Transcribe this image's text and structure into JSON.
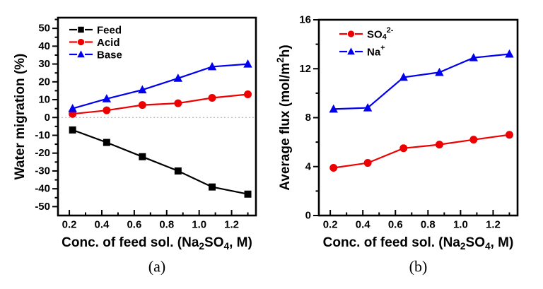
{
  "figure": {
    "background": "#ffffff",
    "frame_color": "#000000",
    "zero_line_color": "#a8a8a8"
  },
  "chart_data": [
    {
      "id": "panel-a",
      "type": "line",
      "panel_label": "(a)",
      "xlabel": "Conc. of feed sol. (Na2SO4, M)",
      "xlabel_segments": [
        {
          "t": "Conc. of feed sol. (Na"
        },
        {
          "t": "2",
          "v": "sub"
        },
        {
          "t": "SO"
        },
        {
          "t": "4",
          "v": "sub"
        },
        {
          "t": ", M)"
        }
      ],
      "ylabel": "Water migration (%)",
      "ylabel_segments": [
        {
          "t": "Water migration (%)"
        }
      ],
      "x": [
        0.22,
        0.43,
        0.65,
        0.87,
        1.08,
        1.3
      ],
      "series": [
        {
          "name": "Feed",
          "label_segments": [
            {
              "t": "Feed"
            }
          ],
          "color": "#000000",
          "marker": "square",
          "values": [
            -7,
            -14,
            -22,
            -30,
            -39,
            -43
          ]
        },
        {
          "name": "Acid",
          "label_segments": [
            {
              "t": "Acid"
            }
          ],
          "color": "#ee0000",
          "marker": "circle",
          "values": [
            2,
            4,
            7,
            8,
            11,
            13
          ]
        },
        {
          "name": "Base",
          "label_segments": [
            {
              "t": "Base"
            }
          ],
          "color": "#0000ee",
          "marker": "triangle",
          "values": [
            5,
            10.5,
            15.5,
            22,
            28.5,
            30
          ]
        }
      ],
      "xlim": [
        0.13,
        1.35
      ],
      "ylim": [
        -55,
        56
      ],
      "xticks": [
        0.2,
        0.4,
        0.6,
        0.8,
        1.0,
        1.2
      ],
      "xtick_labels": [
        "0.2",
        "0.4",
        "0.6",
        "0.8",
        "1.0",
        "1.2"
      ],
      "minor_xticks": [
        0.3,
        0.5,
        0.7,
        0.9,
        1.1,
        1.3
      ],
      "yticks": [
        -50,
        -40,
        -30,
        -20,
        -10,
        0,
        10,
        20,
        30,
        40,
        50
      ],
      "ytick_labels": [
        "-50",
        "-40",
        "-30",
        "-20",
        "-10",
        "0",
        "10",
        "20",
        "30",
        "40",
        "50"
      ],
      "minor_yticks": [
        -45,
        -35,
        -25,
        -15,
        -5,
        5,
        15,
        25,
        35,
        45,
        55
      ],
      "grid": false,
      "zero_line": true,
      "legend_position": "top-left"
    },
    {
      "id": "panel-b",
      "type": "line",
      "panel_label": "(b)",
      "xlabel": "Conc. of feed sol. (Na2SO4, M)",
      "xlabel_segments": [
        {
          "t": "Conc. of feed sol. (Na"
        },
        {
          "t": "2",
          "v": "sub"
        },
        {
          "t": "SO"
        },
        {
          "t": "4",
          "v": "sub"
        },
        {
          "t": ", M)"
        }
      ],
      "ylabel": "Average flux (mol/m2h)",
      "ylabel_segments": [
        {
          "t": "Average flux (mol/m"
        },
        {
          "t": "2",
          "v": "sup"
        },
        {
          "t": "h)"
        }
      ],
      "x": [
        0.22,
        0.43,
        0.65,
        0.87,
        1.08,
        1.3
      ],
      "series": [
        {
          "name": "SO4 2-",
          "label_segments": [
            {
              "t": "SO"
            },
            {
              "t": "4",
              "v": "sub"
            },
            {
              "t": "2-",
              "v": "sup"
            }
          ],
          "color": "#ee0000",
          "marker": "circle",
          "values": [
            3.9,
            4.3,
            5.5,
            5.8,
            6.2,
            6.6
          ]
        },
        {
          "name": "Na+",
          "label_segments": [
            {
              "t": "Na"
            },
            {
              "t": "+",
              "v": "sup"
            }
          ],
          "color": "#0000ee",
          "marker": "triangle",
          "values": [
            8.7,
            8.8,
            11.3,
            11.7,
            12.9,
            13.2
          ]
        }
      ],
      "xlim": [
        0.13,
        1.35
      ],
      "ylim": [
        0,
        16
      ],
      "xticks": [
        0.2,
        0.4,
        0.6,
        0.8,
        1.0,
        1.2
      ],
      "xtick_labels": [
        "0.2",
        "0.4",
        "0.6",
        "0.8",
        "1.0",
        "1.2"
      ],
      "minor_xticks": [
        0.3,
        0.5,
        0.7,
        0.9,
        1.1,
        1.3
      ],
      "yticks": [
        0,
        4,
        8,
        12,
        16
      ],
      "ytick_labels": [
        "0",
        "4",
        "8",
        "12",
        "16"
      ],
      "minor_yticks": [
        2,
        6,
        10,
        14
      ],
      "grid": false,
      "zero_line": false,
      "legend_position": "top-left"
    }
  ]
}
